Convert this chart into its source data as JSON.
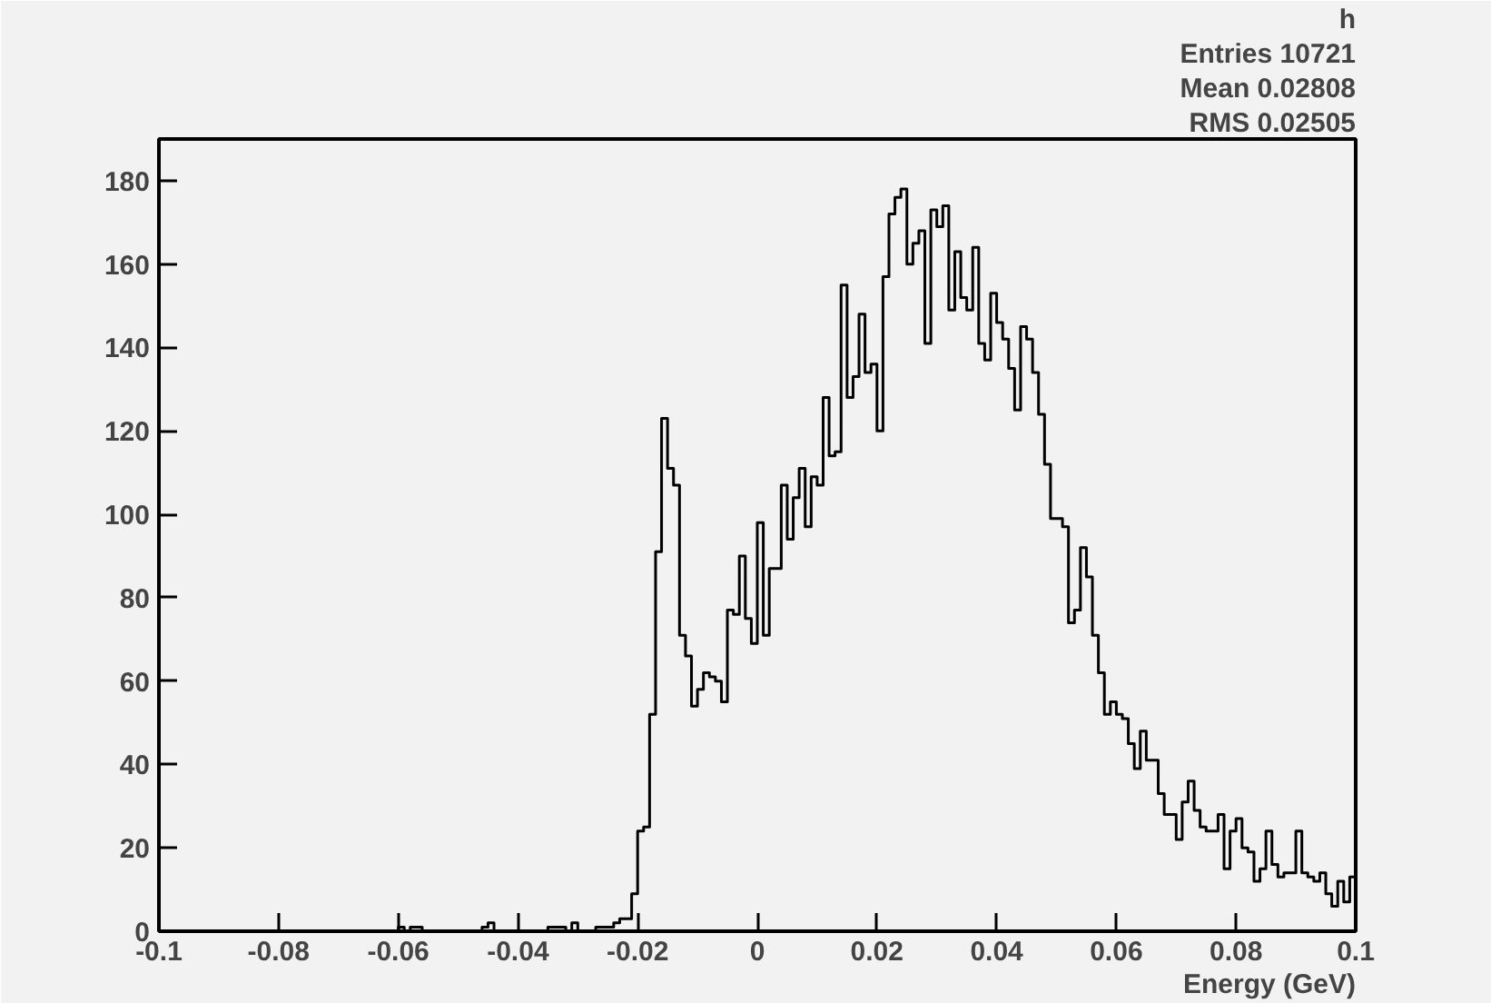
{
  "chart_data": {
    "type": "histogram",
    "xlabel": "Energy (GeV)",
    "bins": [
      -0.1,
      -0.099,
      -0.098,
      -0.097,
      -0.096,
      -0.095,
      -0.094,
      -0.093,
      -0.092,
      -0.091,
      -0.09,
      -0.089,
      -0.088,
      -0.087,
      -0.086,
      -0.085,
      -0.084,
      -0.083,
      -0.082,
      -0.081,
      -0.08,
      -0.079,
      -0.078,
      -0.077,
      -0.076,
      -0.075,
      -0.074,
      -0.073,
      -0.072,
      -0.071,
      -0.07,
      -0.069,
      -0.068,
      -0.067,
      -0.066,
      -0.065,
      -0.064,
      -0.063,
      -0.062,
      -0.061,
      -0.06,
      -0.059,
      -0.058,
      -0.057,
      -0.056,
      -0.055,
      -0.054,
      -0.053,
      -0.052,
      -0.051,
      -0.05,
      -0.049,
      -0.048,
      -0.047,
      -0.046,
      -0.045,
      -0.044,
      -0.043,
      -0.042,
      -0.041,
      -0.04,
      -0.039,
      -0.038,
      -0.037,
      -0.036,
      -0.035,
      -0.034,
      -0.033,
      -0.032,
      -0.031,
      -0.03,
      -0.029,
      -0.028,
      -0.027,
      -0.026,
      -0.025,
      -0.024,
      -0.023,
      -0.022,
      -0.021,
      -0.02,
      -0.019,
      -0.018,
      -0.017,
      -0.016,
      -0.015,
      -0.014,
      -0.013,
      -0.012,
      -0.011,
      -0.01,
      -0.009,
      -0.008,
      -0.007,
      -0.006,
      -0.005,
      -0.004,
      -0.003,
      -0.002,
      -0.001,
      0,
      0.001,
      0.002,
      0.003,
      0.004,
      0.005,
      0.006,
      0.007,
      0.008,
      0.009,
      0.01,
      0.011,
      0.012,
      0.013,
      0.014,
      0.015,
      0.016,
      0.017,
      0.018,
      0.019,
      0.02,
      0.021,
      0.022,
      0.023,
      0.024,
      0.025,
      0.026,
      0.027,
      0.028,
      0.029,
      0.03,
      0.031,
      0.032,
      0.033,
      0.034,
      0.035,
      0.036,
      0.037,
      0.038,
      0.039,
      0.04,
      0.041,
      0.042,
      0.043,
      0.044,
      0.045,
      0.046,
      0.047,
      0.048,
      0.049,
      0.05,
      0.051,
      0.052,
      0.053,
      0.054,
      0.055,
      0.056,
      0.057,
      0.058,
      0.059,
      0.06,
      0.061,
      0.062,
      0.063,
      0.064,
      0.065,
      0.066,
      0.067,
      0.068,
      0.069,
      0.07,
      0.071,
      0.072,
      0.073,
      0.074,
      0.075,
      0.076,
      0.077,
      0.078,
      0.079,
      0.08,
      0.081,
      0.082,
      0.083,
      0.084,
      0.085,
      0.086,
      0.087,
      0.088,
      0.089,
      0.09,
      0.091,
      0.092,
      0.093,
      0.094,
      0.095,
      0.096,
      0.097,
      0.098,
      0.099,
      0.1
    ],
    "values": [
      0,
      0,
      0,
      0,
      0,
      0,
      0,
      0,
      0,
      0,
      0,
      0,
      0,
      0,
      0,
      0,
      0,
      0,
      0,
      0,
      0,
      0,
      0,
      0,
      0,
      0,
      0,
      0,
      0,
      0,
      0,
      0,
      0,
      0,
      0,
      0,
      0,
      0,
      0,
      0,
      1,
      0,
      1,
      1,
      0,
      0,
      0,
      0,
      0,
      0,
      0,
      0,
      0,
      0,
      1,
      2,
      0,
      0,
      0,
      0,
      0,
      0,
      0,
      0,
      0,
      1,
      1,
      1,
      0,
      2,
      0,
      0,
      0,
      1,
      1,
      1,
      2,
      3,
      3,
      9,
      24,
      25,
      52,
      91,
      123,
      111,
      107,
      71,
      66,
      54,
      58,
      62,
      61,
      60,
      55,
      77,
      76,
      90,
      75,
      69,
      98,
      71,
      87,
      87,
      107,
      94,
      104,
      111,
      97,
      109,
      107,
      128,
      114,
      115,
      155,
      128,
      133,
      148,
      134,
      136,
      120,
      157,
      172,
      176,
      178,
      160,
      165,
      168,
      141,
      173,
      169,
      174,
      149,
      163,
      152,
      149,
      164,
      141,
      137,
      153,
      146,
      142,
      135,
      125,
      145,
      142,
      134,
      124,
      112,
      99,
      99,
      97,
      74,
      77,
      92,
      85,
      71,
      62,
      52,
      55,
      52,
      51,
      45,
      39,
      48,
      41,
      41,
      33,
      28,
      28,
      22,
      31,
      36,
      29,
      25,
      24,
      24,
      28,
      15,
      24,
      27,
      20,
      19,
      12,
      15,
      24,
      16,
      13,
      14,
      14,
      24,
      14,
      13,
      12,
      14,
      9,
      6,
      12,
      7,
      13
    ],
    "color": "#000000",
    "xlim": [
      -0.1,
      0.1
    ],
    "xticks": [
      -0.1,
      -0.08,
      -0.06,
      -0.04,
      -0.02,
      0,
      0.02,
      0.04,
      0.06,
      0.08,
      0.1
    ],
    "ylim": [
      0,
      190
    ],
    "yticks": [
      0,
      20,
      40,
      60,
      80,
      100,
      120,
      140,
      160,
      180
    ],
    "grid": false,
    "annotations": [
      "h",
      "Entries 10721",
      "Mean 0.02808",
      "RMS 0.02505"
    ]
  }
}
